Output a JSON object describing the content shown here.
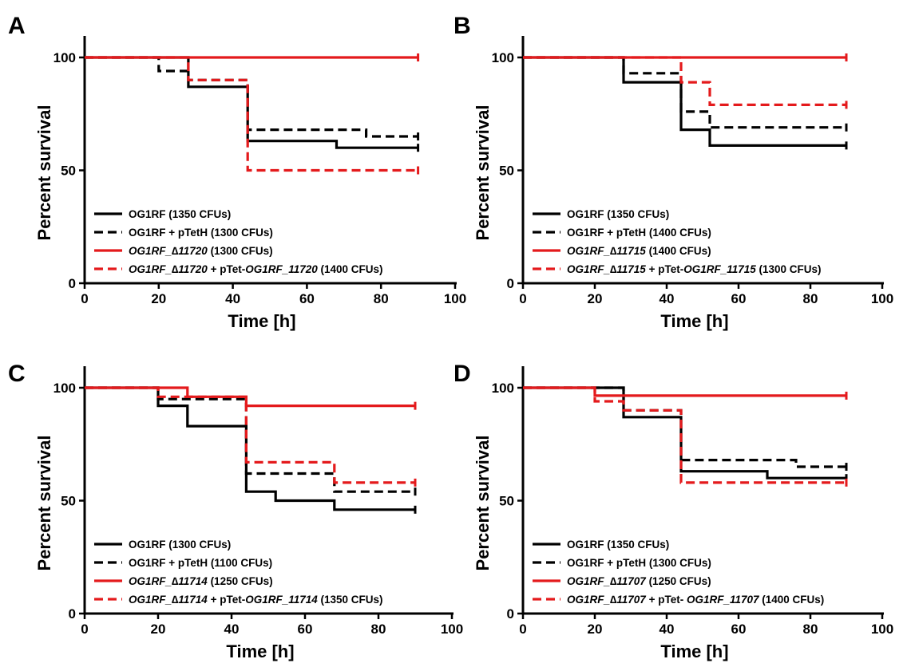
{
  "chart_data": [
    {
      "panel": "A",
      "type": "line",
      "xlabel": "Time [h]",
      "ylabel": "Percent survival",
      "xlim": [
        0,
        100
      ],
      "ylim": [
        0,
        100
      ],
      "xticks": [
        0,
        20,
        40,
        60,
        80,
        100
      ],
      "yticks": [
        0,
        50,
        100
      ],
      "legend_position": "bottom-left",
      "series": [
        {
          "name": "OG1RF (1350 CFUs)",
          "italic": "",
          "color": "#000000",
          "dashed": false,
          "x": [
            0,
            28,
            28,
            44,
            44,
            68,
            68,
            90
          ],
          "y": [
            100,
            100,
            87,
            87,
            63,
            63,
            60,
            60
          ]
        },
        {
          "name": "OG1RF + pTetH (1300 CFUs)",
          "italic": "",
          "color": "#000000",
          "dashed": true,
          "x": [
            0,
            20,
            20,
            28,
            28,
            44,
            44,
            76,
            76,
            90
          ],
          "y": [
            100,
            100,
            94,
            94,
            90,
            90,
            68,
            68,
            65,
            65
          ]
        },
        {
          "name": " (1300 CFUs)",
          "italic": "OG1RF_∆11720",
          "color": "#e41a1c",
          "dashed": false,
          "x": [
            0,
            90
          ],
          "y": [
            100,
            100
          ]
        },
        {
          "name": " + pTet-OG1RF_11720 (1400 CFUs)",
          "italic": "OG1RF_∆11720",
          "color": "#e41a1c",
          "dashed": true,
          "x": [
            0,
            28,
            28,
            44,
            44,
            90
          ],
          "y": [
            100,
            100,
            90,
            90,
            50,
            50
          ]
        }
      ]
    },
    {
      "panel": "B",
      "type": "line",
      "xlabel": "Time [h]",
      "ylabel": "Percent survival",
      "xlim": [
        0,
        100
      ],
      "ylim": [
        0,
        100
      ],
      "xticks": [
        0,
        20,
        40,
        60,
        80,
        100
      ],
      "yticks": [
        0,
        50,
        100
      ],
      "legend_position": "bottom-left",
      "series": [
        {
          "name": "OG1RF (1350 CFUs)",
          "italic": "",
          "color": "#000000",
          "dashed": false,
          "x": [
            0,
            28,
            28,
            44,
            44,
            52,
            52,
            90
          ],
          "y": [
            100,
            100,
            89,
            89,
            68,
            68,
            61,
            61
          ]
        },
        {
          "name": "OG1RF + pTetH (1400 CFUs)",
          "italic": "",
          "color": "#000000",
          "dashed": true,
          "x": [
            0,
            28,
            28,
            44,
            44,
            52,
            52,
            90
          ],
          "y": [
            100,
            100,
            93,
            93,
            76,
            76,
            69,
            69
          ]
        },
        {
          "name": " (1400 CFUs)",
          "italic": "OG1RF_∆11715",
          "color": "#e41a1c",
          "dashed": false,
          "x": [
            0,
            90
          ],
          "y": [
            100,
            100
          ]
        },
        {
          "name": " + pTet-OG1RF_11715 (1300 CFUs)",
          "italic": "OG1RF_∆11715",
          "color": "#e41a1c",
          "dashed": true,
          "x": [
            0,
            44,
            44,
            52,
            52,
            90
          ],
          "y": [
            100,
            100,
            89,
            89,
            79,
            79
          ]
        }
      ]
    },
    {
      "panel": "C",
      "type": "line",
      "xlabel": "Time [h]",
      "ylabel": "Percent survival",
      "xlim": [
        0,
        100
      ],
      "ylim": [
        0,
        100
      ],
      "xticks": [
        0,
        20,
        40,
        60,
        80,
        100
      ],
      "yticks": [
        0,
        50,
        100
      ],
      "legend_position": "bottom-left",
      "series": [
        {
          "name": "OG1RF (1300 CFUs)",
          "italic": "",
          "color": "#000000",
          "dashed": false,
          "x": [
            0,
            20,
            20,
            28,
            28,
            44,
            44,
            52,
            52,
            68,
            68,
            90
          ],
          "y": [
            100,
            100,
            92,
            92,
            83,
            83,
            54,
            54,
            50,
            50,
            46,
            46
          ]
        },
        {
          "name": "OG1RF + pTetH (1100 CFUs)",
          "italic": "",
          "color": "#000000",
          "dashed": true,
          "x": [
            0,
            20,
            20,
            44,
            44,
            68,
            68,
            90
          ],
          "y": [
            100,
            100,
            95,
            95,
            62,
            62,
            54,
            54
          ]
        },
        {
          "name": " (1250 CFUs)",
          "italic": "OG1RF_∆11714",
          "color": "#e41a1c",
          "dashed": false,
          "x": [
            0,
            28,
            28,
            44,
            44,
            90
          ],
          "y": [
            100,
            100,
            96,
            96,
            92,
            92
          ]
        },
        {
          "name": " + pTet-OG1RF_11714 (1350 CFUs)",
          "italic": "OG1RF_∆11714",
          "color": "#e41a1c",
          "dashed": true,
          "x": [
            0,
            20,
            20,
            44,
            44,
            68,
            68,
            90
          ],
          "y": [
            100,
            100,
            96,
            96,
            67,
            67,
            58,
            58
          ]
        }
      ]
    },
    {
      "panel": "D",
      "type": "line",
      "xlabel": "Time [h]",
      "ylabel": "Percent survival",
      "xlim": [
        0,
        100
      ],
      "ylim": [
        0,
        100
      ],
      "xticks": [
        0,
        20,
        40,
        60,
        80,
        100
      ],
      "yticks": [
        0,
        50,
        100
      ],
      "legend_position": "bottom-left",
      "series": [
        {
          "name": "OG1RF (1350 CFUs)",
          "italic": "",
          "color": "#000000",
          "dashed": false,
          "x": [
            0,
            28,
            28,
            44,
            44,
            68,
            68,
            90
          ],
          "y": [
            100,
            100,
            87,
            87,
            63,
            63,
            60,
            60
          ]
        },
        {
          "name": "OG1RF + pTetH (1300 CFUs)",
          "italic": "",
          "color": "#000000",
          "dashed": true,
          "x": [
            0,
            28,
            28,
            44,
            44,
            76,
            76,
            90
          ],
          "y": [
            100,
            100,
            90,
            90,
            68,
            68,
            65,
            65
          ]
        },
        {
          "name": " (1250 CFUs)",
          "italic": "OG1RF_∆11707",
          "color": "#e41a1c",
          "dashed": false,
          "x": [
            0,
            20,
            20,
            90
          ],
          "y": [
            100,
            100,
            96.5,
            96.5
          ]
        },
        {
          "name": " + pTet- OG1RF_11707 (1400 CFUs)",
          "italic": "OG1RF_∆11707",
          "color": "#e41a1c",
          "dashed": true,
          "x": [
            0,
            20,
            20,
            28,
            28,
            44,
            44,
            90
          ],
          "y": [
            100,
            100,
            94,
            94,
            90,
            90,
            58,
            58
          ]
        }
      ]
    }
  ]
}
